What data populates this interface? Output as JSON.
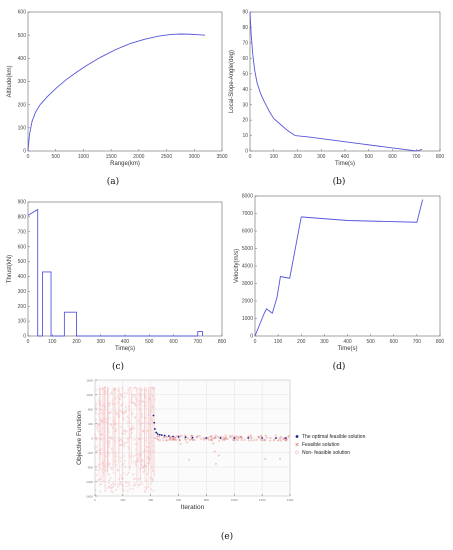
{
  "chart_data": [
    {
      "id": "a",
      "type": "line",
      "caption": "(a)",
      "xlabel": "Range(km)",
      "ylabel": "Altitude(km)",
      "xlim": [
        0,
        4000
      ],
      "ylim": [
        0,
        600
      ],
      "xticks": [
        "0",
        "500",
        "1000",
        "1500",
        "2000",
        "2500",
        "3000",
        "3500"
      ],
      "yticks": [
        "0",
        "100",
        "200",
        "300",
        "400",
        "500",
        "600"
      ],
      "grid": false,
      "series": [
        {
          "color": "#5555dd",
          "x": [
            0,
            30,
            80,
            150,
            250,
            400,
            600,
            800,
            1000,
            1200,
            1500,
            1800,
            2100,
            2400,
            2700,
            2950,
            3150,
            3350,
            3500,
            3650
          ],
          "y": [
            0,
            70,
            125,
            165,
            200,
            235,
            275,
            310,
            340,
            368,
            405,
            437,
            463,
            482,
            496,
            503,
            505,
            504,
            502,
            500
          ]
        }
      ]
    },
    {
      "id": "b",
      "type": "line",
      "caption": "(b)",
      "xlabel": "Time(s)",
      "ylabel": "Local-Slope-Angle(deg)",
      "xlim": [
        0,
        800
      ],
      "ylim": [
        0,
        90
      ],
      "xticks": [
        "0",
        "100",
        "200",
        "300",
        "400",
        "500",
        "600",
        "700",
        "800"
      ],
      "yticks": [
        "0",
        "10",
        "20",
        "30",
        "40",
        "50",
        "60",
        "70",
        "80",
        "90"
      ],
      "grid": false,
      "series": [
        {
          "color": "#5555dd",
          "x": [
            0,
            5,
            12,
            20,
            30,
            45,
            60,
            80,
            100,
            130,
            160,
            190,
            250,
            350,
            450,
            550,
            650,
            700,
            725
          ],
          "y": [
            90,
            75,
            62,
            52,
            44,
            37,
            32,
            26,
            21,
            17,
            13,
            10,
            9,
            7,
            5,
            3,
            1,
            0,
            1
          ]
        }
      ]
    },
    {
      "id": "c",
      "type": "line",
      "caption": "(c)",
      "xlabel": "Time(s)",
      "ylabel": "Thrust(kN)",
      "xlim": [
        0,
        800
      ],
      "ylim": [
        0,
        900
      ],
      "xticks": [
        "0",
        "100",
        "200",
        "300",
        "400",
        "500",
        "600",
        "700",
        "800"
      ],
      "yticks": [
        "0",
        "100",
        "200",
        "300",
        "400",
        "500",
        "600",
        "700",
        "800",
        "900"
      ],
      "grid": false,
      "series": [
        {
          "color": "#5555dd",
          "x": [
            0,
            40,
            40,
            60,
            60,
            95,
            95,
            150,
            150,
            200,
            200,
            700,
            700,
            720,
            720
          ],
          "y": [
            810,
            850,
            0,
            0,
            430,
            430,
            0,
            0,
            160,
            160,
            0,
            0,
            30,
            30,
            0
          ]
        }
      ]
    },
    {
      "id": "d",
      "type": "line",
      "caption": "(d)",
      "xlabel": "Time(s)",
      "ylabel": "Velocity(m/s)",
      "xlim": [
        0,
        800
      ],
      "ylim": [
        0,
        8000
      ],
      "xticks": [
        "0",
        "100",
        "200",
        "300",
        "400",
        "500",
        "600",
        "700",
        "800"
      ],
      "yticks": [
        "0",
        "1000",
        "2000",
        "3000",
        "4000",
        "5000",
        "6000",
        "7000",
        "8000"
      ],
      "grid": false,
      "series": [
        {
          "color": "#5555dd",
          "x": [
            0,
            40,
            50,
            60,
            75,
            95,
            110,
            150,
            200,
            205,
            400,
            700,
            725
          ],
          "y": [
            0,
            1300,
            1550,
            1450,
            1300,
            2200,
            3400,
            3300,
            6800,
            6800,
            6600,
            6500,
            7800
          ]
        }
      ]
    },
    {
      "id": "e",
      "type": "scatter",
      "caption": "(e)",
      "xlabel": "Iteration",
      "ylabel": "Objective Function",
      "xlim": [
        0,
        1400
      ],
      "ylim": [
        -1600,
        1600
      ],
      "yticks": [
        "-1600",
        "-1200",
        "-800",
        "-400",
        "0",
        "400",
        "800",
        "1200",
        "1600"
      ],
      "xticks": [
        "0",
        "200",
        "400",
        "600",
        "800",
        "1000",
        "1200",
        "1400"
      ],
      "grid": true,
      "legend": "right",
      "series": [
        {
          "name": "The optimal feasible solution",
          "color": "#1a1a8c",
          "marker": "dot",
          "x": [
            420,
            425,
            430,
            440,
            450,
            465,
            480,
            500,
            530,
            560,
            600,
            650,
            700,
            800,
            900,
            1000,
            1100,
            1200,
            1300,
            1370
          ],
          "y": [
            620,
            420,
            250,
            150,
            110,
            90,
            80,
            70,
            55,
            40,
            30,
            20,
            10,
            0,
            0,
            0,
            0,
            0,
            0,
            0
          ]
        },
        {
          "name": "Feasible solution",
          "color": "#e07a7a",
          "marker": "cross"
        },
        {
          "name": "Non- feasible solution",
          "color": "#f4b6b6",
          "marker": "circle"
        }
      ]
    }
  ]
}
